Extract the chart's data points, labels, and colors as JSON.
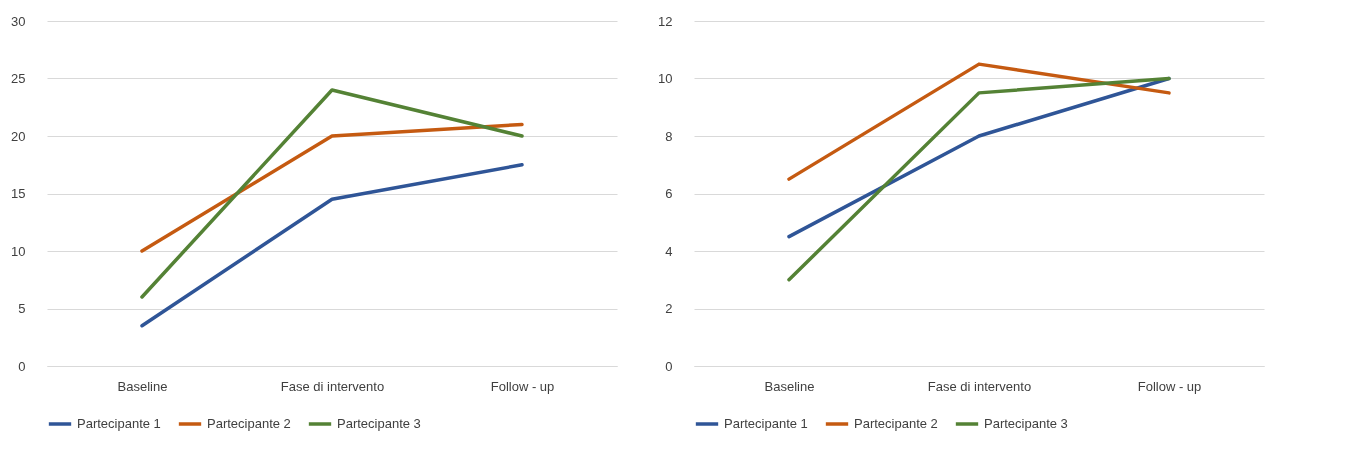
{
  "chart_data": [
    {
      "type": "line",
      "categories": [
        "Baseline",
        "Fase di intervento",
        "Follow - up"
      ],
      "ylim": [
        0,
        30
      ],
      "yticks": [
        0,
        5,
        10,
        15,
        20,
        25,
        30
      ],
      "grid": "y",
      "legend": "bottom",
      "line_style": "solid",
      "marker": "none",
      "series": [
        {
          "name": "Partecipante 1",
          "color": "#2f5597",
          "values": [
            3.5,
            14.5,
            17.5
          ]
        },
        {
          "name": "Partecipante 2",
          "color": "#c55a11",
          "values": [
            10,
            20,
            21
          ]
        },
        {
          "name": "Partecipante 3",
          "color": "#548235",
          "values": [
            6,
            24,
            20
          ]
        }
      ]
    },
    {
      "type": "line",
      "categories": [
        "Baseline",
        "Fase di intervento",
        "Follow - up"
      ],
      "ylim": [
        0,
        12
      ],
      "yticks": [
        0,
        2,
        4,
        6,
        8,
        10,
        12
      ],
      "grid": "y",
      "legend": "bottom",
      "line_style": "solid",
      "marker": "none",
      "series": [
        {
          "name": "Partecipante 1",
          "color": "#2f5597",
          "values": [
            4.5,
            8,
            10
          ]
        },
        {
          "name": "Partecipante 2",
          "color": "#c55a11",
          "values": [
            6.5,
            10.5,
            9.5
          ]
        },
        {
          "name": "Partecipante 3",
          "color": "#548235",
          "values": [
            3,
            9.5,
            10
          ]
        }
      ]
    }
  ]
}
